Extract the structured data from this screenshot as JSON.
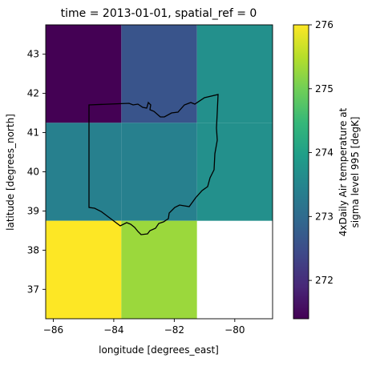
{
  "chart_data": {
    "type": "heatmap",
    "title": "time = 2013-01-01, spatial_ref = 0",
    "xlabel": "longitude [degrees_east]",
    "ylabel": "latitude [degrees_north]",
    "xlim": [
      -86.25,
      -78.75
    ],
    "ylim": [
      36.25,
      43.75
    ],
    "xticks": [
      -86,
      -84,
      -82,
      -80
    ],
    "yticks": [
      37,
      38,
      39,
      40,
      41,
      42,
      43
    ],
    "xtick_labels": [
      "−86",
      "−84",
      "−82",
      "−80"
    ],
    "ytick_labels": [
      "37",
      "38",
      "39",
      "40",
      "41",
      "42",
      "43"
    ],
    "x_edges": [
      -86.25,
      -83.75,
      -81.25,
      -78.75
    ],
    "y_edges": [
      43.75,
      41.25,
      38.75,
      36.25
    ],
    "values": [
      [
        271.4,
        272.6,
        273.7
      ],
      [
        273.4,
        273.4,
        273.7
      ],
      [
        276.0,
        275.3,
        null
      ]
    ],
    "colorbar": {
      "label_line1": "4xDaily Air temperature at",
      "label_line2": "sigma level 995 [degK]",
      "range": [
        271.4,
        276.0
      ],
      "ticks": [
        272,
        273,
        274,
        275,
        276
      ],
      "tick_labels": [
        "272",
        "273",
        "274",
        "275",
        "276"
      ],
      "colormap": "viridis"
    },
    "grid": false,
    "outline": "Ohio state boundary"
  },
  "colors": {
    "viridis": [
      "#440154",
      "#482878",
      "#3e4989",
      "#31688e",
      "#26828e",
      "#1f9e89",
      "#35b779",
      "#6ece58",
      "#b5de2b",
      "#fde725"
    ],
    "outline": "#000000"
  }
}
